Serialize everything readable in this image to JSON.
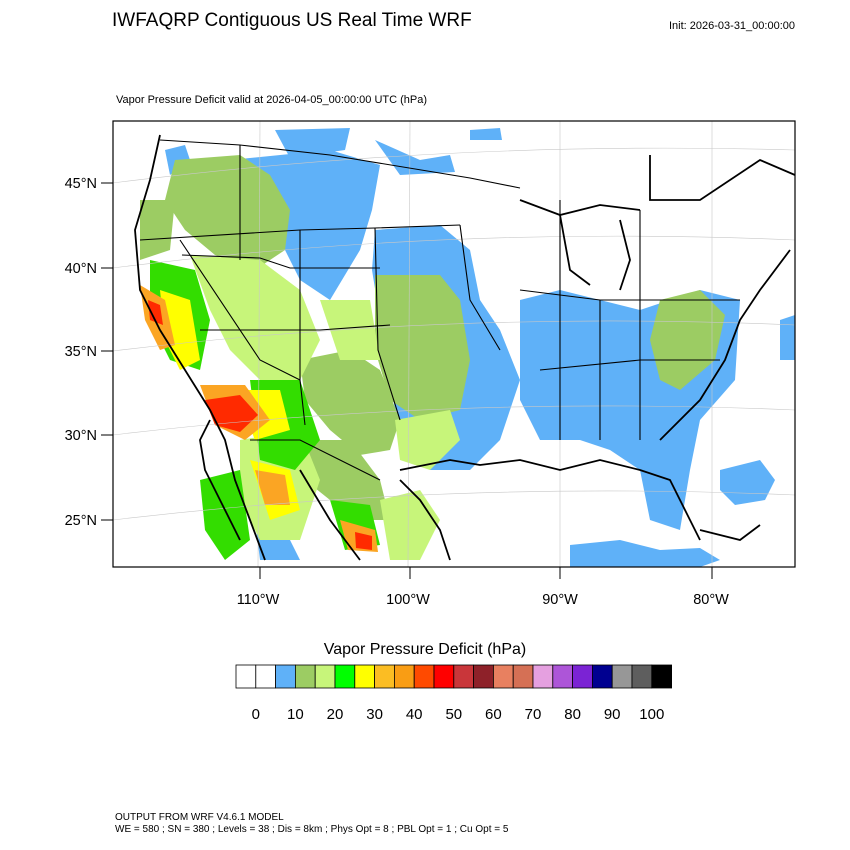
{
  "header": {
    "title": "IWFAQRP Contiguous US Real Time WRF",
    "init": "Init: 2026-03-31_00:00:00"
  },
  "map": {
    "subtitle": "Vapor Pressure Deficit valid at 2026-04-05_00:00:00 UTC   (hPa)",
    "latitude_labels": [
      "45°N",
      "40°N",
      "35°N",
      "30°N",
      "25°N"
    ],
    "longitude_labels": [
      "110°W",
      "100°W",
      "90°W",
      "80°W"
    ],
    "colors": {
      "frame": "#000000",
      "water_rain_blue": "#5fb1f8",
      "olive": "#9ccc63",
      "light_green": "#c7f57a",
      "green": "#33dd00",
      "yellow": "#ffff00",
      "orange": "#fba523",
      "red": "#ff0000"
    }
  },
  "legend": {
    "title": "Vapor Pressure Deficit  (hPa)",
    "colors": [
      "#ffffff",
      "#ffffff",
      "#5fb1f8",
      "#9ccc63",
      "#c7f57a",
      "#00ff00",
      "#ffff00",
      "#fbbd23",
      "#f99d14",
      "#ff4a00",
      "#ff0000",
      "#c9363a",
      "#8e2129",
      "#e88060",
      "#d57055",
      "#e5a0e0",
      "#ad55d8",
      "#7b23d4",
      "#000090",
      "#979797",
      "#5e5e5e",
      "#000000"
    ],
    "tick_labels": [
      "0",
      "10",
      "20",
      "30",
      "40",
      "50",
      "60",
      "70",
      "80",
      "90",
      "100"
    ]
  },
  "footer": {
    "line1": "OUTPUT FROM WRF V4.6.1 MODEL",
    "line2": "WE = 580 ; SN = 380 ; Levels = 38 ; Dis = 8km ; Phys Opt = 8 ; PBL Opt = 1 ; Cu Opt = 5"
  }
}
